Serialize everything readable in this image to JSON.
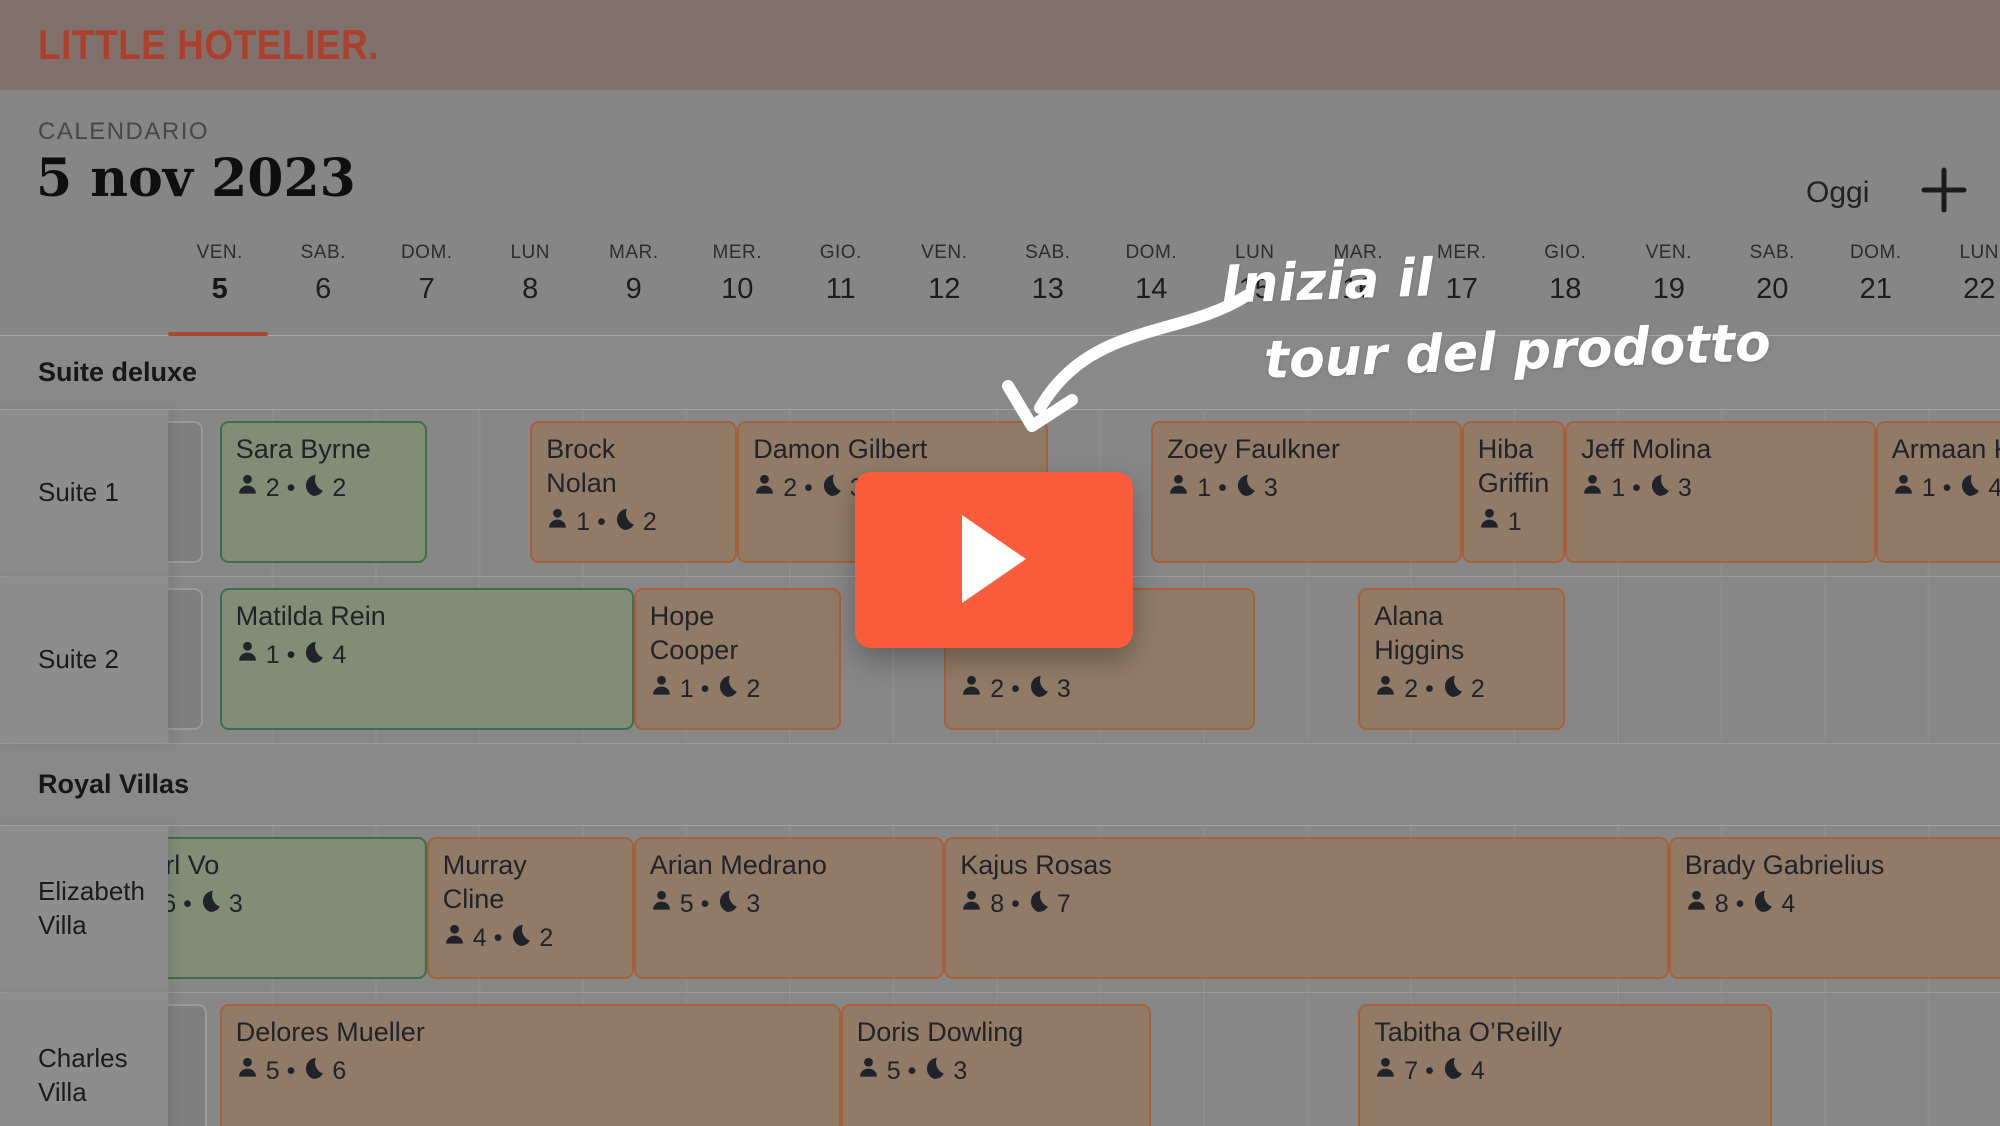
{
  "brand": {
    "logo_text": "LITTLE HOTELIER.",
    "logo_color": "#AC402B"
  },
  "toolbar": {
    "section_label": "CALENDARIO",
    "current_date": "5 nov 2023",
    "today_label": "Oggi",
    "add_icon": "plus"
  },
  "ui": {
    "stats_separator": "•",
    "guest_icon": "person-icon",
    "nights_icon": "moon-icon"
  },
  "colors": {
    "topbar_bg": "#80716C",
    "selected_day_underline": "#A8492B",
    "booking_green_bg": "#828D76",
    "booking_green_border": "#3E6F4D",
    "booking_tan_bg": "#917B66",
    "booking_tan_border": "#A5613C",
    "booking_gray_bg": "#7F7F7F",
    "booking_gray_border": "#9B9B9B",
    "play_button": "#FA5B3B"
  },
  "calendar": {
    "days": [
      {
        "label": "VEN.",
        "num": "5",
        "selected": true
      },
      {
        "label": "SAB.",
        "num": "6",
        "selected": false
      },
      {
        "label": "DOM.",
        "num": "7",
        "selected": false
      },
      {
        "label": "LUN",
        "num": "8",
        "selected": false
      },
      {
        "label": "MAR.",
        "num": "9",
        "selected": false
      },
      {
        "label": "MER.",
        "num": "10",
        "selected": false
      },
      {
        "label": "GIO.",
        "num": "11",
        "selected": false
      },
      {
        "label": "VEN.",
        "num": "12",
        "selected": false
      },
      {
        "label": "SAB.",
        "num": "13",
        "selected": false
      },
      {
        "label": "DOM.",
        "num": "14",
        "selected": false
      },
      {
        "label": "LUN",
        "num": "15",
        "selected": false
      },
      {
        "label": "MAR.",
        "num": "16",
        "selected": false
      },
      {
        "label": "MER.",
        "num": "17",
        "selected": false
      },
      {
        "label": "GIO.",
        "num": "18",
        "selected": false
      },
      {
        "label": "VEN.",
        "num": "19",
        "selected": false
      },
      {
        "label": "SAB.",
        "num": "20",
        "selected": false
      },
      {
        "label": "DOM.",
        "num": "21",
        "selected": false
      },
      {
        "label": "LUN",
        "num": "22",
        "selected": false
      }
    ],
    "sections": [
      {
        "name": "Suite deluxe",
        "rooms": [
          {
            "name": "Suite 1",
            "bookings": [
              {
                "guest_lines": [],
                "guests": null,
                "nights": null,
                "start": 4.35,
                "end": 5.34,
                "variant": "gray"
              },
              {
                "guest_lines": [
                  "Sara Byrne"
                ],
                "guests": "2",
                "nights": "2",
                "start": 5.5,
                "end": 7.5,
                "variant": "green"
              },
              {
                "guest_lines": [
                  "Brock",
                  "Nolan"
                ],
                "guests": "1",
                "nights": "2",
                "start": 8.5,
                "end": 10.5,
                "variant": "tan"
              },
              {
                "guest_lines": [
                  "Damon Gilbert"
                ],
                "guests": "2",
                "nights": "3",
                "start": 10.5,
                "end": 13.5,
                "variant": "tan"
              },
              {
                "guest_lines": [
                  "Zoey Faulkner"
                ],
                "guests": "1",
                "nights": "3",
                "start": 14.5,
                "end": 17.5,
                "variant": "tan"
              },
              {
                "guest_lines": [
                  "Hiba",
                  "Griffin"
                ],
                "guests": "1",
                "nights": null,
                "start": 17.5,
                "end": 18.5,
                "variant": "tan"
              },
              {
                "guest_lines": [
                  "Jeff Molina"
                ],
                "guests": "1",
                "nights": "3",
                "start": 18.5,
                "end": 21.5,
                "variant": "tan"
              },
              {
                "guest_lines": [
                  "Armaan K"
                ],
                "guests": "1",
                "nights": "4",
                "start": 21.5,
                "end": 25.5,
                "variant": "tan"
              }
            ]
          },
          {
            "name": "Suite 2",
            "bookings": [
              {
                "guest_lines": [],
                "guests": null,
                "nights": null,
                "start": 4.35,
                "end": 5.34,
                "variant": "gray"
              },
              {
                "guest_lines": [
                  "Matilda Rein"
                ],
                "guests": "1",
                "nights": "4",
                "start": 5.5,
                "end": 9.5,
                "variant": "green"
              },
              {
                "guest_lines": [
                  "Hope",
                  "Cooper"
                ],
                "guests": "1",
                "nights": "2",
                "start": 9.5,
                "end": 11.5,
                "variant": "tan"
              },
              {
                "guest_lines": [
                  "",
                  ""
                ],
                "guests": "2",
                "nights": "3",
                "start": 12.5,
                "end": 15.5,
                "variant": "tan"
              },
              {
                "guest_lines": [
                  "Alana",
                  "Higgins"
                ],
                "guests": "2",
                "nights": "2",
                "start": 16.5,
                "end": 18.5,
                "variant": "tan"
              }
            ]
          }
        ]
      },
      {
        "name": "Royal Villas",
        "rooms": [
          {
            "name": "Elizabeth Villa",
            "bookings": [
              {
                "guest_lines": [
                  "Karl Vo"
                ],
                "guests": "6",
                "nights": "3",
                "start": 4.5,
                "end": 7.5,
                "variant": "green"
              },
              {
                "guest_lines": [
                  "Murray",
                  "Cline"
                ],
                "guests": "4",
                "nights": "2",
                "start": 7.5,
                "end": 9.5,
                "variant": "tan"
              },
              {
                "guest_lines": [
                  "Arian Medrano"
                ],
                "guests": "5",
                "nights": "3",
                "start": 9.5,
                "end": 12.5,
                "variant": "tan"
              },
              {
                "guest_lines": [
                  "Kajus Rosas"
                ],
                "guests": "8",
                "nights": "7",
                "start": 12.5,
                "end": 19.5,
                "variant": "tan"
              },
              {
                "guest_lines": [
                  "Brady Gabrielius"
                ],
                "guests": "8",
                "nights": "4",
                "start": 19.5,
                "end": 23.5,
                "variant": "tan"
              }
            ]
          },
          {
            "name": "Charles Villa",
            "bookings": [
              {
                "guest_lines": [],
                "guests": null,
                "nights": null,
                "start": 4.35,
                "end": 5.38,
                "variant": "gray"
              },
              {
                "guest_lines": [
                  "Delores Mueller"
                ],
                "guests": "5",
                "nights": "6",
                "start": 5.5,
                "end": 11.5,
                "variant": "tan"
              },
              {
                "guest_lines": [
                  "Doris Dowling"
                ],
                "guests": "5",
                "nights": "3",
                "start": 11.5,
                "end": 14.5,
                "variant": "tan"
              },
              {
                "guest_lines": [
                  "Tabitha O’Reilly"
                ],
                "guests": "7",
                "nights": "4",
                "start": 16.5,
                "end": 20.5,
                "variant": "tan"
              }
            ]
          }
        ]
      }
    ]
  },
  "tour": {
    "line1": "Inizia il",
    "line2": "tour del prodotto",
    "play_icon": "play-icon"
  }
}
